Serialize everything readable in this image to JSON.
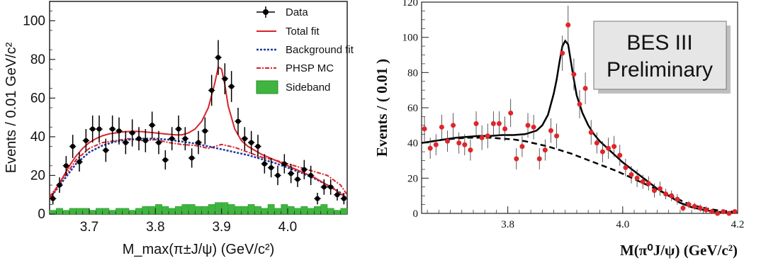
{
  "chart_data": [
    {
      "type": "scatter",
      "xlabel": "M_max(π±J/ψ) (GeV/c²)",
      "ylabel": "Events / 0.01 GeV/c²",
      "xlim": [
        3.64,
        4.09
      ],
      "ylim": [
        0,
        110
      ],
      "xticks": [
        3.7,
        3.8,
        3.9,
        4.0
      ],
      "yticks": [
        0,
        20,
        40,
        60,
        80,
        100
      ],
      "tick_labels_x": [
        "3.7",
        "3.8",
        "3.9",
        "4.0"
      ],
      "tick_labels_y": [
        "0",
        "20",
        "40",
        "60",
        "80",
        "100"
      ],
      "legend_position": "top-right",
      "legend": [
        "Data",
        "Total fit",
        "Background fit",
        "PHSP MC",
        "Sideband"
      ],
      "colors": {
        "data": "#000000",
        "total_fit": "#d9222a",
        "background_fit": "#1f3a9e",
        "phsp": "#d9222a",
        "sideband": "#3fb53f"
      },
      "data": {
        "x": [
          3.645,
          3.655,
          3.665,
          3.675,
          3.685,
          3.695,
          3.705,
          3.715,
          3.725,
          3.735,
          3.745,
          3.755,
          3.765,
          3.775,
          3.785,
          3.795,
          3.805,
          3.815,
          3.825,
          3.835,
          3.845,
          3.855,
          3.865,
          3.875,
          3.885,
          3.895,
          3.905,
          3.915,
          3.925,
          3.935,
          3.945,
          3.955,
          3.965,
          3.975,
          3.985,
          3.995,
          4.005,
          4.015,
          4.025,
          4.035,
          4.045,
          4.055,
          4.065,
          4.075,
          4.085
        ],
        "y": [
          8,
          15,
          25,
          35,
          27,
          38,
          44,
          44,
          33,
          44,
          43,
          37,
          42,
          39,
          38,
          46,
          37,
          28,
          39,
          44,
          39,
          29,
          37,
          43,
          64,
          81,
          70,
          66,
          48,
          39,
          37,
          35,
          26,
          24,
          20,
          26,
          21,
          18,
          23,
          20,
          8,
          14,
          14,
          10,
          8
        ],
        "yerr": [
          3,
          4,
          5,
          6,
          5,
          6,
          7,
          7,
          6,
          7,
          7,
          6,
          7,
          6,
          6,
          7,
          6,
          5,
          6,
          7,
          6,
          5,
          6,
          7,
          8,
          9,
          8,
          8,
          7,
          6,
          6,
          6,
          5,
          5,
          5,
          5,
          5,
          4,
          5,
          5,
          3,
          4,
          4,
          3,
          3
        ]
      },
      "total_fit": {
        "x": [
          3.64,
          3.65,
          3.66,
          3.67,
          3.68,
          3.69,
          3.7,
          3.71,
          3.72,
          3.73,
          3.74,
          3.75,
          3.76,
          3.77,
          3.78,
          3.79,
          3.8,
          3.81,
          3.82,
          3.83,
          3.84,
          3.85,
          3.86,
          3.87,
          3.88,
          3.89,
          3.895,
          3.9,
          3.905,
          3.91,
          3.92,
          3.93,
          3.94,
          3.95,
          3.96,
          3.97,
          3.98,
          3.99,
          4.0,
          4.01,
          4.02,
          4.03,
          4.04,
          4.05,
          4.06,
          4.07,
          4.08,
          4.09
        ],
        "y": [
          8,
          13,
          19,
          25,
          30,
          34,
          37,
          39,
          40.5,
          41.5,
          42,
          42.5,
          42.7,
          42.8,
          42.6,
          42.3,
          42,
          41.6,
          41.3,
          41,
          41,
          42,
          44,
          48,
          55,
          68,
          76,
          75,
          67,
          56,
          44,
          38,
          35,
          33,
          31,
          29.5,
          28,
          26.5,
          25,
          23.5,
          22,
          20.5,
          19,
          17,
          15,
          13,
          10.5,
          8
        ]
      },
      "background_fit": {
        "x": [
          3.64,
          3.66,
          3.68,
          3.7,
          3.72,
          3.74,
          3.76,
          3.78,
          3.8,
          3.82,
          3.84,
          3.86,
          3.88,
          3.9,
          3.92,
          3.94,
          3.96,
          3.98,
          4.0,
          4.02,
          4.04,
          4.06,
          4.08,
          4.09
        ],
        "y": [
          8,
          17,
          26,
          32,
          35.5,
          37.5,
          38.5,
          39,
          39,
          38.5,
          37.5,
          36.5,
          35,
          33.5,
          32,
          30.5,
          28.5,
          26.5,
          24,
          21.5,
          18.5,
          15,
          11,
          8
        ]
      },
      "phsp_mc": {
        "x": [
          3.64,
          3.66,
          3.68,
          3.7,
          3.72,
          3.74,
          3.76,
          3.78,
          3.8,
          3.82,
          3.84,
          3.86,
          3.88,
          3.9,
          3.92,
          3.94,
          3.96,
          3.98,
          4.0,
          4.02,
          4.04,
          4.06,
          4.08,
          4.09
        ],
        "y": [
          9,
          18,
          28,
          34,
          37,
          38,
          39,
          38,
          38.5,
          37,
          36,
          35.5,
          34,
          36,
          34.5,
          32,
          29.5,
          28,
          26,
          24,
          22,
          20,
          15,
          10
        ]
      },
      "sideband": {
        "x": [
          3.645,
          3.655,
          3.665,
          3.675,
          3.685,
          3.695,
          3.705,
          3.715,
          3.725,
          3.735,
          3.745,
          3.755,
          3.765,
          3.775,
          3.785,
          3.795,
          3.805,
          3.815,
          3.825,
          3.835,
          3.845,
          3.855,
          3.865,
          3.875,
          3.885,
          3.895,
          3.905,
          3.915,
          3.925,
          3.935,
          3.945,
          3.955,
          3.965,
          3.975,
          3.985,
          3.995,
          4.005,
          4.015,
          4.025,
          4.035,
          4.045,
          4.055,
          4.065,
          4.075,
          4.085
        ],
        "y": [
          2,
          3,
          2,
          3,
          3,
          3,
          2,
          3,
          3,
          2,
          3,
          3,
          2,
          3,
          4,
          4,
          5,
          4,
          3,
          4,
          5,
          5,
          4,
          4,
          5,
          6,
          6,
          5,
          4,
          4,
          5,
          4,
          3,
          5,
          3,
          5,
          4,
          3,
          4,
          3,
          4,
          5,
          3,
          2,
          3
        ]
      }
    },
    {
      "type": "scatter",
      "xlabel": "M(π⁰J/ψ) (GeV/c²)",
      "ylabel": "Events / ( 0.01 )",
      "xlim": [
        3.65,
        4.2
      ],
      "ylim": [
        0,
        120
      ],
      "xticks": [
        3.8,
        4.0,
        4.2
      ],
      "yticks": [
        0,
        20,
        40,
        60,
        80,
        100,
        120
      ],
      "tick_labels_x": [
        "3.8",
        "4.0",
        "4.2"
      ],
      "tick_labels_y": [
        "0",
        "20",
        "40",
        "60",
        "80",
        "100",
        "120"
      ],
      "annotation": [
        "BES III",
        "Preliminary"
      ],
      "colors": {
        "data": "#e0252a",
        "fit": "#000000"
      },
      "data": {
        "x": [
          3.655,
          3.665,
          3.675,
          3.685,
          3.695,
          3.705,
          3.715,
          3.725,
          3.735,
          3.745,
          3.755,
          3.765,
          3.775,
          3.785,
          3.795,
          3.805,
          3.815,
          3.825,
          3.835,
          3.845,
          3.855,
          3.865,
          3.875,
          3.885,
          3.895,
          3.905,
          3.915,
          3.925,
          3.935,
          3.945,
          3.955,
          3.965,
          3.975,
          3.985,
          3.995,
          4.005,
          4.015,
          4.025,
          4.035,
          4.045,
          4.055,
          4.065,
          4.075,
          4.085,
          4.095,
          4.105,
          4.115,
          4.125,
          4.135,
          4.145,
          4.155,
          4.165,
          4.175,
          4.185,
          4.195
        ],
        "y": [
          48,
          37,
          39,
          49,
          41,
          50,
          40,
          39,
          36,
          51,
          43,
          44,
          51,
          51,
          48,
          57,
          31,
          38,
          50,
          49,
          31,
          36,
          47,
          44,
          91,
          107,
          79,
          62,
          71,
          46,
          40,
          35,
          37,
          38,
          33,
          26,
          22,
          20,
          18,
          17,
          13,
          14,
          11,
          10,
          8,
          3,
          5,
          4,
          3,
          2,
          1,
          0,
          1,
          0,
          1
        ],
        "yerr": [
          7,
          6,
          6,
          7,
          6,
          7,
          6,
          6,
          6,
          7,
          7,
          7,
          7,
          7,
          7,
          8,
          6,
          6,
          7,
          7,
          6,
          6,
          7,
          7,
          10,
          11,
          9,
          8,
          9,
          7,
          6,
          6,
          6,
          6,
          6,
          5,
          5,
          5,
          4,
          4,
          4,
          4,
          3,
          3,
          3,
          2,
          2,
          2,
          2,
          2,
          1,
          1,
          1,
          1,
          1
        ]
      },
      "total_fit": {
        "x": [
          3.65,
          3.67,
          3.69,
          3.71,
          3.73,
          3.75,
          3.77,
          3.79,
          3.81,
          3.83,
          3.85,
          3.86,
          3.87,
          3.88,
          3.885,
          3.89,
          3.895,
          3.9,
          3.905,
          3.91,
          3.915,
          3.92,
          3.93,
          3.94,
          3.95,
          3.96,
          3.97,
          3.98,
          3.99,
          4.0,
          4.02,
          4.04,
          4.06,
          4.08,
          4.1,
          4.12,
          4.14,
          4.16,
          4.18,
          4.2
        ],
        "y": [
          40,
          41,
          42,
          43,
          43.5,
          44,
          44,
          44.5,
          44.5,
          45,
          47,
          50,
          56,
          68,
          76,
          86,
          95,
          98,
          96,
          86,
          76,
          67,
          57,
          50,
          45,
          41,
          38,
          35,
          32,
          29,
          24,
          19,
          14,
          10,
          6,
          3.5,
          2,
          1,
          0.5,
          0.5
        ]
      },
      "background_fit": {
        "x": [
          3.65,
          3.67,
          3.69,
          3.71,
          3.73,
          3.75,
          3.77,
          3.79,
          3.81,
          3.83,
          3.85,
          3.87,
          3.89,
          3.91,
          3.93,
          3.95,
          3.97,
          3.99,
          4.01,
          4.03,
          4.05,
          4.07,
          4.09,
          4.11,
          4.13,
          4.15,
          4.17,
          4.19,
          4.2
        ],
        "y": [
          40,
          41,
          42,
          42.5,
          43,
          43,
          43,
          42.5,
          42,
          41,
          39.5,
          38,
          36,
          34,
          31.5,
          29,
          26.5,
          24,
          21,
          18,
          15,
          12,
          9,
          6,
          4,
          2.5,
          1.5,
          1,
          0.5
        ]
      }
    }
  ]
}
